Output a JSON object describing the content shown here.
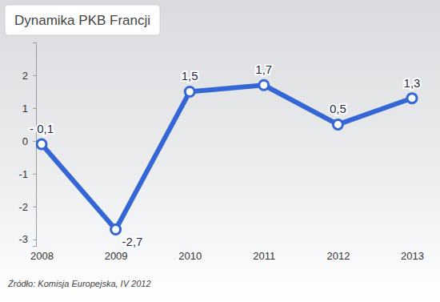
{
  "chart_data": {
    "type": "line",
    "title": "Dynamika PKB Francji",
    "annotations": [
      "Źródło: Komisja Europejska, IV 2012"
    ],
    "categories": [
      "2008",
      "2009",
      "2010",
      "2011",
      "2012",
      "2013"
    ],
    "values": [
      -0.1,
      -2.7,
      1.5,
      1.7,
      0.5,
      1.3
    ],
    "value_labels": [
      "- 0,1",
      "-2,7",
      "1,5",
      "1,7",
      "0,5",
      "1,3"
    ],
    "color": "#3466d6",
    "marker": "circle",
    "data_labels": true,
    "grid": false,
    "ylim": [
      -3.2,
      3
    ],
    "yticks": [
      -3,
      -2,
      -1,
      0,
      1,
      2
    ]
  }
}
